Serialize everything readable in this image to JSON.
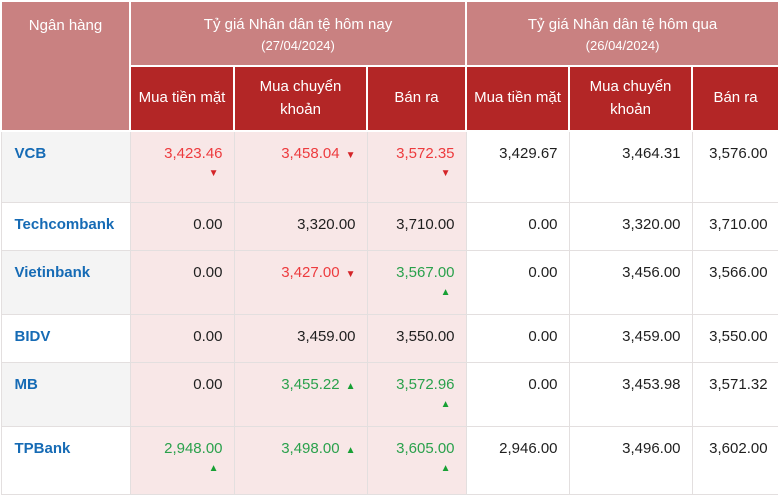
{
  "colors": {
    "header_rose_bg": "#c98181",
    "header_darkred_bg": "#b32626",
    "today_cell_pink_bg": "#f8e7e7",
    "alt_row_gray_bg": "#f4f4f4",
    "bank_name_blue": "#166bb5",
    "decrease_text_red": "#ed3b3e",
    "decrease_arrow_red": "#d42428",
    "increase_text_green": "#2aa14c",
    "increase_arrow_green": "#17a034"
  },
  "icons": {
    "up_arrow_icon": "▲",
    "down_arrow_icon": "▼"
  },
  "table": {
    "header": {
      "bank_label": "Ngân hàng",
      "groups": [
        {
          "title": "Tỷ giá Nhân dân tệ hôm nay",
          "date": "(27/04/2024)"
        },
        {
          "title": "Tỷ giá Nhân dân tệ hôm qua",
          "date": "(26/04/2024)"
        }
      ],
      "sub_columns": [
        "Mua tiền mặt",
        "Mua chuyển khoản",
        "Bán ra"
      ]
    },
    "rows": [
      {
        "bank": "VCB",
        "today": [
          {
            "value": "3,423.46",
            "color": "red",
            "trend": "down",
            "arrow_position": "below"
          },
          {
            "value": "3,458.04",
            "color": "red",
            "trend": "down",
            "arrow_position": "inline"
          },
          {
            "value": "3,572.35",
            "color": "red",
            "trend": "down",
            "arrow_position": "below"
          }
        ],
        "yesterday": [
          "3,429.67",
          "3,464.31",
          "3,576.00"
        ]
      },
      {
        "bank": "Techcombank",
        "today": [
          {
            "value": "0.00",
            "color": "black",
            "trend": null,
            "arrow_position": null
          },
          {
            "value": "3,320.00",
            "color": "black",
            "trend": null,
            "arrow_position": null
          },
          {
            "value": "3,710.00",
            "color": "black",
            "trend": null,
            "arrow_position": null
          }
        ],
        "yesterday": [
          "0.00",
          "3,320.00",
          "3,710.00"
        ]
      },
      {
        "bank": "Vietinbank",
        "today": [
          {
            "value": "0.00",
            "color": "black",
            "trend": null,
            "arrow_position": null
          },
          {
            "value": "3,427.00",
            "color": "red",
            "trend": "down",
            "arrow_position": "inline"
          },
          {
            "value": "3,567.00",
            "color": "green",
            "trend": "up",
            "arrow_position": "below"
          }
        ],
        "yesterday": [
          "0.00",
          "3,456.00",
          "3,566.00"
        ]
      },
      {
        "bank": "BIDV",
        "today": [
          {
            "value": "0.00",
            "color": "black",
            "trend": null,
            "arrow_position": null
          },
          {
            "value": "3,459.00",
            "color": "black",
            "trend": null,
            "arrow_position": null
          },
          {
            "value": "3,550.00",
            "color": "black",
            "trend": null,
            "arrow_position": null
          }
        ],
        "yesterday": [
          "0.00",
          "3,459.00",
          "3,550.00"
        ]
      },
      {
        "bank": "MB",
        "today": [
          {
            "value": "0.00",
            "color": "black",
            "trend": null,
            "arrow_position": null
          },
          {
            "value": "3,455.22",
            "color": "green",
            "trend": "up",
            "arrow_position": "inline"
          },
          {
            "value": "3,572.96",
            "color": "green",
            "trend": "up",
            "arrow_position": "below"
          }
        ],
        "yesterday": [
          "0.00",
          "3,453.98",
          "3,571.32"
        ]
      },
      {
        "bank": "TPBank",
        "today": [
          {
            "value": "2,948.00",
            "color": "green",
            "trend": "up",
            "arrow_position": "below"
          },
          {
            "value": "3,498.00",
            "color": "green",
            "trend": "up",
            "arrow_position": "inline"
          },
          {
            "value": "3,605.00",
            "color": "green",
            "trend": "up",
            "arrow_position": "below"
          }
        ],
        "yesterday": [
          "2,946.00",
          "3,496.00",
          "3,602.00"
        ]
      }
    ]
  }
}
